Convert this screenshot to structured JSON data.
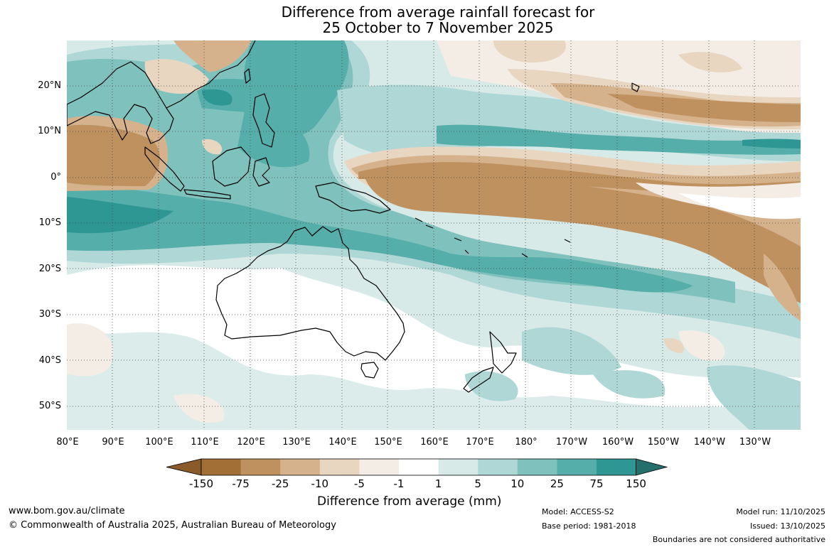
{
  "title": {
    "line1": "Difference from average rainfall forecast for",
    "line2": "25 October to 7 November 2025"
  },
  "map": {
    "lat_labels": [
      "20°N",
      "10°N",
      "0°",
      "10°S",
      "20°S",
      "30°S",
      "40°S",
      "50°S"
    ],
    "lon_labels": [
      "80°E",
      "90°E",
      "100°E",
      "110°E",
      "120°E",
      "130°E",
      "140°E",
      "150°E",
      "160°E",
      "170°E",
      "180°",
      "170°W",
      "160°W",
      "150°W",
      "140°W",
      "130°W"
    ],
    "palette": [
      "#a26f37",
      "#be915f",
      "#d5b18c",
      "#e8d6c1",
      "#f3ede6",
      "#ffffff",
      "#d7eae8",
      "#aed7d5",
      "#7fc1bd",
      "#56aeaa",
      "#2f9793",
      "#246e6b"
    ]
  },
  "colorbar": {
    "labels": [
      "-150",
      "-75",
      "-25",
      "-10",
      "-5",
      "-1",
      "1",
      "5",
      "10",
      "25",
      "75",
      "150"
    ],
    "colors": [
      "#a26f37",
      "#be915f",
      "#d5b18c",
      "#e8d6c1",
      "#f3ede6",
      "#ffffff",
      "#d7eae8",
      "#aed7d5",
      "#7fc1bd",
      "#56aeaa",
      "#2f9793"
    ],
    "low_extend_color": "#8b5a2b",
    "high_extend_color": "#246e6b",
    "axis_label": "Difference from average (mm)"
  },
  "footer": {
    "website": "www.bom.gov.au/climate",
    "copyright": "© Commonwealth of Australia 2025, Australian Bureau of Meteorology",
    "model": "Model: ACCESS-S2",
    "base_period": "Base period: 1981-2018",
    "model_run": "Model run: 11/10/2025",
    "issued": "Issued: 13/10/2025",
    "disclaimer": "Boundaries are not considered authoritative"
  }
}
